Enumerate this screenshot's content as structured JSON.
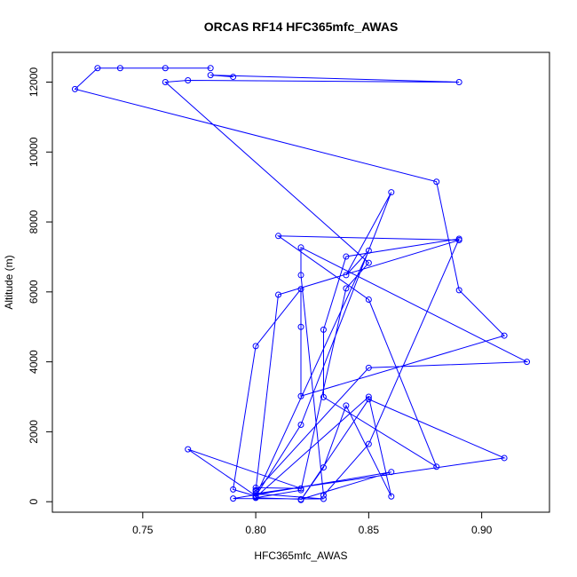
{
  "chart_data": {
    "type": "line",
    "title": "ORCAS RF14 HFC365mfc_AWAS",
    "xlabel": "HFC365mfc_AWAS",
    "ylabel": "Altitude (m)",
    "xlim": [
      0.71,
      0.93
    ],
    "ylim": [
      -300,
      12850
    ],
    "x_ticks": [
      0.75,
      0.8,
      0.85,
      0.9
    ],
    "x_tick_labels": [
      "0.75",
      "0.80",
      "0.85",
      "0.90"
    ],
    "y_ticks": [
      0,
      2000,
      4000,
      6000,
      8000,
      10000,
      12000
    ],
    "y_tick_labels": [
      "0",
      "2000",
      "4000",
      "6000",
      "8000",
      "10000",
      "12000"
    ],
    "grid": false,
    "series": [
      {
        "color": "#0000ff",
        "marker": "open-circle",
        "x": [
          0.78,
          0.76,
          0.74,
          0.73,
          0.72,
          0.88,
          0.89,
          0.91,
          0.82,
          0.82,
          0.82,
          0.8,
          0.79,
          0.8,
          0.82,
          0.86,
          0.84,
          0.85,
          0.8,
          0.8,
          0.81,
          0.89,
          0.81,
          0.85,
          0.88,
          0.83,
          0.83,
          0.84,
          0.89,
          0.85,
          0.83,
          0.82,
          0.82,
          0.92,
          0.85,
          0.8,
          0.8,
          0.82,
          0.77,
          0.8,
          0.8,
          0.85,
          0.86,
          0.84,
          0.83,
          0.82,
          0.85,
          0.91,
          0.8,
          0.83,
          0.79,
          0.86,
          0.82,
          0.8,
          0.82,
          0.84,
          0.85,
          0.76,
          0.77,
          0.89,
          0.78,
          0.79
        ],
        "y": [
          12400,
          12400,
          12400,
          12400,
          11800,
          9150,
          6050,
          4750,
          3020,
          5000,
          6080,
          4450,
          350,
          160,
          2200,
          8850,
          6480,
          7180,
          160,
          330,
          5920,
          7480,
          7600,
          5780,
          1000,
          2990,
          4920,
          7010,
          7520,
          1650,
          180,
          6480,
          7270,
          4000,
          3830,
          300,
          400,
          380,
          1500,
          170,
          130,
          3000,
          150,
          2750,
          980,
          50,
          2930,
          1250,
          230,
          80,
          90,
          850,
          70,
          110,
          330,
          6100,
          6830,
          12000,
          12050,
          12000,
          12200,
          12150
        ]
      }
    ]
  }
}
